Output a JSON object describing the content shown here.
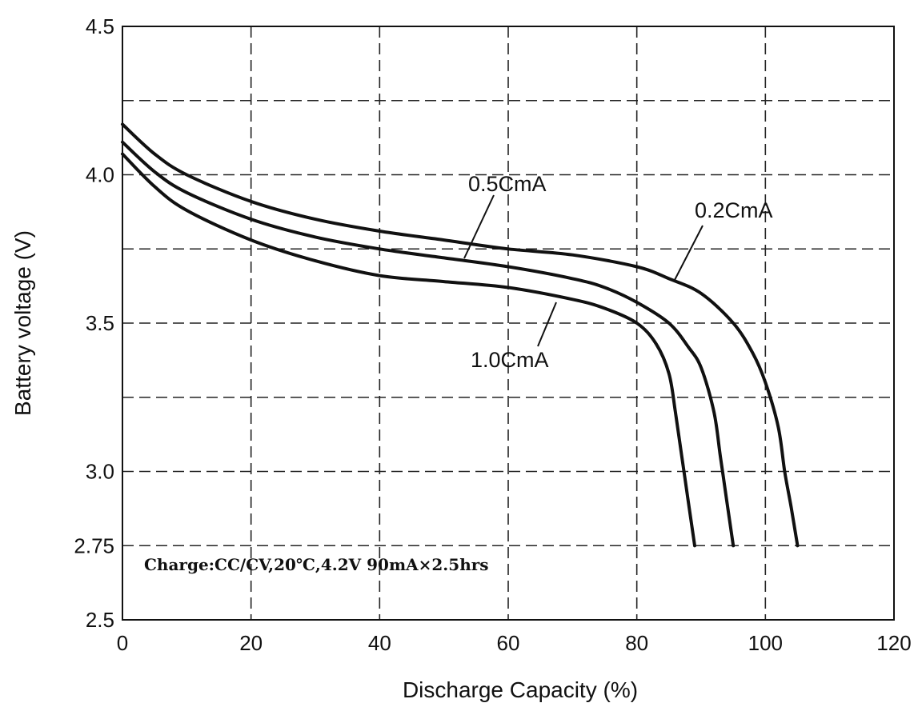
{
  "chart_data": {
    "type": "line",
    "title": "",
    "xlabel": "Discharge Capacity (%)",
    "ylabel": "Battery voltage (V)",
    "xlim": [
      0,
      120
    ],
    "ylim": [
      2.5,
      4.5
    ],
    "x_ticks": [
      "0",
      "20",
      "40",
      "60",
      "80",
      "100",
      "120"
    ],
    "x_tick_values": [
      0,
      20,
      40,
      60,
      80,
      100,
      120
    ],
    "y_ticks": [
      "4.5",
      "4.0",
      "3.5",
      "3.0",
      "2.75",
      "2.5"
    ],
    "y_tick_values": [
      4.5,
      4.0,
      3.5,
      3.0,
      2.75,
      2.5
    ],
    "grid": true,
    "h_grid_values": [
      4.25,
      4.0,
      3.75,
      3.5,
      3.25,
      3.0,
      2.75
    ],
    "v_grid_values": [
      20,
      40,
      60,
      80,
      100
    ],
    "annotation": "Charge:CC/CV,20℃,4.2V 90mA×2.5hrs",
    "series": [
      {
        "name": "0.2CmA",
        "x": [
          0,
          5,
          10,
          20,
          30,
          40,
          50,
          60,
          70,
          80,
          85,
          90,
          95,
          98,
          100,
          102,
          103,
          104,
          105
        ],
        "y": [
          4.17,
          4.07,
          4.0,
          3.91,
          3.85,
          3.81,
          3.78,
          3.75,
          3.73,
          3.69,
          3.65,
          3.6,
          3.5,
          3.4,
          3.3,
          3.15,
          3.0,
          2.88,
          2.75
        ]
      },
      {
        "name": "0.5CmA",
        "x": [
          0,
          5,
          10,
          20,
          30,
          40,
          50,
          60,
          70,
          75,
          80,
          85,
          88,
          90,
          92,
          93,
          94,
          95
        ],
        "y": [
          4.11,
          4.01,
          3.94,
          3.85,
          3.79,
          3.75,
          3.72,
          3.69,
          3.65,
          3.62,
          3.57,
          3.5,
          3.42,
          3.35,
          3.2,
          3.05,
          2.9,
          2.75
        ]
      },
      {
        "name": "1.0CmA",
        "x": [
          0,
          5,
          10,
          20,
          30,
          40,
          50,
          60,
          70,
          75,
          80,
          83,
          85,
          86,
          87,
          88,
          89
        ],
        "y": [
          4.07,
          3.96,
          3.88,
          3.78,
          3.71,
          3.66,
          3.64,
          3.62,
          3.58,
          3.55,
          3.5,
          3.43,
          3.33,
          3.2,
          3.05,
          2.9,
          2.75
        ]
      }
    ]
  }
}
